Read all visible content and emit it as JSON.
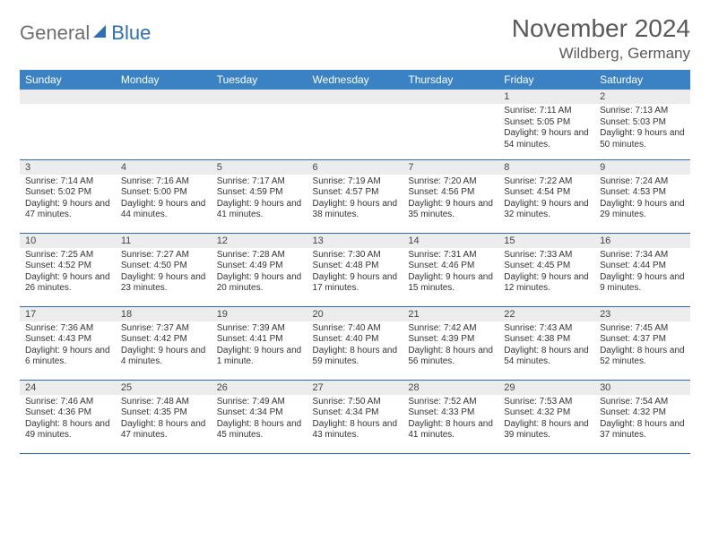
{
  "brand": {
    "gray": "General",
    "blue": "Blue"
  },
  "header": {
    "month": "November 2024",
    "location": "Wildberg, Germany"
  },
  "colors": {
    "header_bg": "#3a82c4",
    "band_bg": "#ececec",
    "rule": "#2f6aa8"
  },
  "weekdays": [
    "Sunday",
    "Monday",
    "Tuesday",
    "Wednesday",
    "Thursday",
    "Friday",
    "Saturday"
  ],
  "weeks": [
    [
      {
        "n": "",
        "t": ""
      },
      {
        "n": "",
        "t": ""
      },
      {
        "n": "",
        "t": ""
      },
      {
        "n": "",
        "t": ""
      },
      {
        "n": "",
        "t": ""
      },
      {
        "n": "1",
        "t": "Sunrise: 7:11 AM\nSunset: 5:05 PM\nDaylight: 9 hours and 54 minutes."
      },
      {
        "n": "2",
        "t": "Sunrise: 7:13 AM\nSunset: 5:03 PM\nDaylight: 9 hours and 50 minutes."
      }
    ],
    [
      {
        "n": "3",
        "t": "Sunrise: 7:14 AM\nSunset: 5:02 PM\nDaylight: 9 hours and 47 minutes."
      },
      {
        "n": "4",
        "t": "Sunrise: 7:16 AM\nSunset: 5:00 PM\nDaylight: 9 hours and 44 minutes."
      },
      {
        "n": "5",
        "t": "Sunrise: 7:17 AM\nSunset: 4:59 PM\nDaylight: 9 hours and 41 minutes."
      },
      {
        "n": "6",
        "t": "Sunrise: 7:19 AM\nSunset: 4:57 PM\nDaylight: 9 hours and 38 minutes."
      },
      {
        "n": "7",
        "t": "Sunrise: 7:20 AM\nSunset: 4:56 PM\nDaylight: 9 hours and 35 minutes."
      },
      {
        "n": "8",
        "t": "Sunrise: 7:22 AM\nSunset: 4:54 PM\nDaylight: 9 hours and 32 minutes."
      },
      {
        "n": "9",
        "t": "Sunrise: 7:24 AM\nSunset: 4:53 PM\nDaylight: 9 hours and 29 minutes."
      }
    ],
    [
      {
        "n": "10",
        "t": "Sunrise: 7:25 AM\nSunset: 4:52 PM\nDaylight: 9 hours and 26 minutes."
      },
      {
        "n": "11",
        "t": "Sunrise: 7:27 AM\nSunset: 4:50 PM\nDaylight: 9 hours and 23 minutes."
      },
      {
        "n": "12",
        "t": "Sunrise: 7:28 AM\nSunset: 4:49 PM\nDaylight: 9 hours and 20 minutes."
      },
      {
        "n": "13",
        "t": "Sunrise: 7:30 AM\nSunset: 4:48 PM\nDaylight: 9 hours and 17 minutes."
      },
      {
        "n": "14",
        "t": "Sunrise: 7:31 AM\nSunset: 4:46 PM\nDaylight: 9 hours and 15 minutes."
      },
      {
        "n": "15",
        "t": "Sunrise: 7:33 AM\nSunset: 4:45 PM\nDaylight: 9 hours and 12 minutes."
      },
      {
        "n": "16",
        "t": "Sunrise: 7:34 AM\nSunset: 4:44 PM\nDaylight: 9 hours and 9 minutes."
      }
    ],
    [
      {
        "n": "17",
        "t": "Sunrise: 7:36 AM\nSunset: 4:43 PM\nDaylight: 9 hours and 6 minutes."
      },
      {
        "n": "18",
        "t": "Sunrise: 7:37 AM\nSunset: 4:42 PM\nDaylight: 9 hours and 4 minutes."
      },
      {
        "n": "19",
        "t": "Sunrise: 7:39 AM\nSunset: 4:41 PM\nDaylight: 9 hours and 1 minute."
      },
      {
        "n": "20",
        "t": "Sunrise: 7:40 AM\nSunset: 4:40 PM\nDaylight: 8 hours and 59 minutes."
      },
      {
        "n": "21",
        "t": "Sunrise: 7:42 AM\nSunset: 4:39 PM\nDaylight: 8 hours and 56 minutes."
      },
      {
        "n": "22",
        "t": "Sunrise: 7:43 AM\nSunset: 4:38 PM\nDaylight: 8 hours and 54 minutes."
      },
      {
        "n": "23",
        "t": "Sunrise: 7:45 AM\nSunset: 4:37 PM\nDaylight: 8 hours and 52 minutes."
      }
    ],
    [
      {
        "n": "24",
        "t": "Sunrise: 7:46 AM\nSunset: 4:36 PM\nDaylight: 8 hours and 49 minutes."
      },
      {
        "n": "25",
        "t": "Sunrise: 7:48 AM\nSunset: 4:35 PM\nDaylight: 8 hours and 47 minutes."
      },
      {
        "n": "26",
        "t": "Sunrise: 7:49 AM\nSunset: 4:34 PM\nDaylight: 8 hours and 45 minutes."
      },
      {
        "n": "27",
        "t": "Sunrise: 7:50 AM\nSunset: 4:34 PM\nDaylight: 8 hours and 43 minutes."
      },
      {
        "n": "28",
        "t": "Sunrise: 7:52 AM\nSunset: 4:33 PM\nDaylight: 8 hours and 41 minutes."
      },
      {
        "n": "29",
        "t": "Sunrise: 7:53 AM\nSunset: 4:32 PM\nDaylight: 8 hours and 39 minutes."
      },
      {
        "n": "30",
        "t": "Sunrise: 7:54 AM\nSunset: 4:32 PM\nDaylight: 8 hours and 37 minutes."
      }
    ]
  ]
}
